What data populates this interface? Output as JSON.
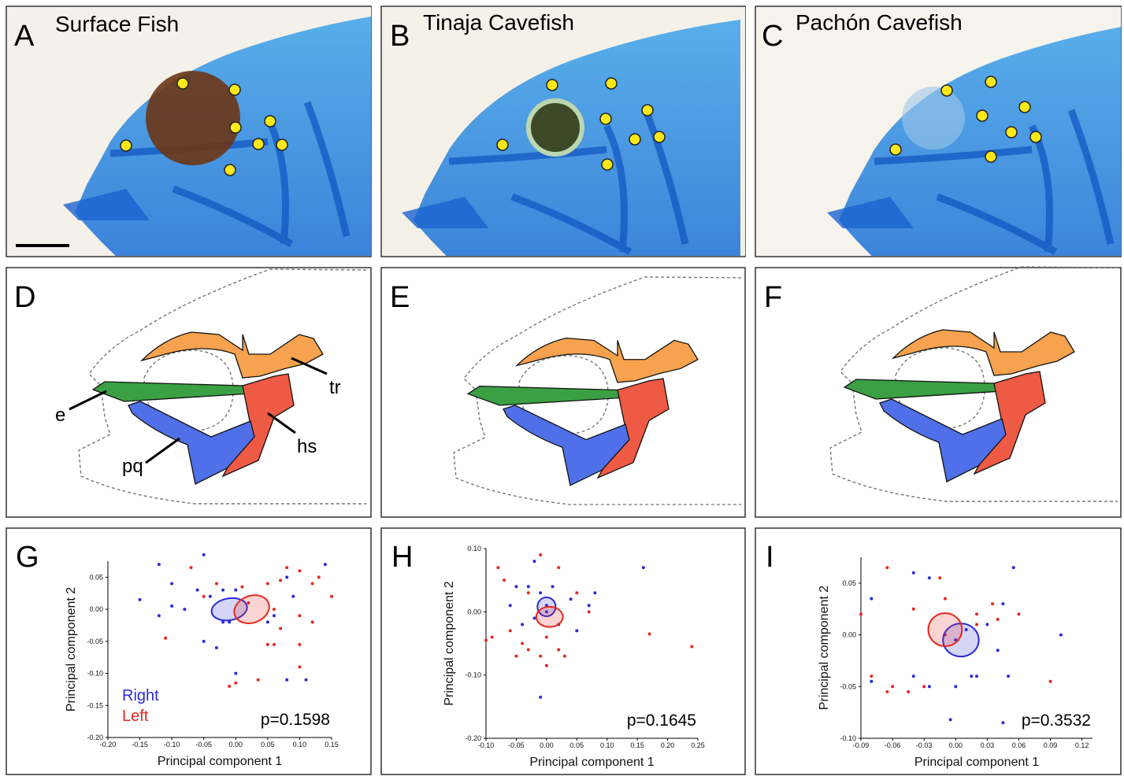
{
  "panels": [
    {
      "label": "A",
      "title": "Surface Fish"
    },
    {
      "label": "B",
      "title": "Tinaja Cavefish"
    },
    {
      "label": "C",
      "title": "Pachón Cavefish"
    },
    {
      "label": "D"
    },
    {
      "label": "E"
    },
    {
      "label": "F"
    }
  ],
  "diagram_labels": [
    "e",
    "pq",
    "hs",
    "tr"
  ],
  "plots": [
    {
      "label": "G",
      "type": "scatter",
      "xlabel": "Principal component 1",
      "ylabel": "Principal component 2",
      "xlim": [
        -0.2,
        0.15
      ],
      "ylim": [
        -0.2,
        0.075
      ],
      "xticks": [
        {
          "value": -0.2,
          "label": "-0.20"
        },
        {
          "value": -0.15,
          "label": "-0.15"
        },
        {
          "value": -0.1,
          "label": "-0.10"
        },
        {
          "value": -0.05,
          "label": "-0.05"
        },
        {
          "value": 0,
          "label": "0.00"
        },
        {
          "value": 0.05,
          "label": "0.05"
        },
        {
          "value": 0.1,
          "label": "0.10"
        },
        {
          "value": 0.15,
          "label": "0.15"
        }
      ],
      "yticks": [
        {
          "value": -0.2,
          "label": "-0.20"
        },
        {
          "value": -0.15,
          "label": "-0.15"
        },
        {
          "value": -0.1,
          "label": "-0.10"
        },
        {
          "value": -0.05,
          "label": "-0.05"
        },
        {
          "value": 0,
          "label": "0.00"
        },
        {
          "value": 0.05,
          "label": "0.05"
        }
      ],
      "legend": true,
      "annotation": "p=0.1598",
      "series": [
        {
          "name": "Right",
          "color": "#2b2bd8",
          "x": [
            -0.05,
            -0.12,
            0.14,
            -0.1,
            -0.06,
            -0.04,
            -0.02,
            0,
            -0.15,
            -0.1,
            -0.08,
            -0.12,
            -0.02,
            -0.05,
            -0.03,
            0.05,
            0.08,
            0.09,
            0.06,
            0,
            0.08,
            0.11,
            -0.01
          ],
          "y": [
            0.085,
            0.07,
            0.07,
            0.04,
            0.03,
            0.02,
            0.03,
            0.03,
            0.015,
            0.005,
            0,
            -0.01,
            -0.02,
            -0.05,
            -0.06,
            -0.02,
            0.05,
            0.02,
            -0.01,
            -0.1,
            -0.11,
            -0.11,
            -0.02
          ],
          "ellipse": {
            "cx": -0.01,
            "cy": 0,
            "rx": 0.028,
            "ry": 0.017,
            "angle": -10
          }
        },
        {
          "name": "Left",
          "color": "#e52a1e",
          "x": [
            -0.07,
            0.08,
            -0.11,
            -0.05,
            -0.03,
            0.01,
            0.05,
            0.07,
            0.1,
            0.12,
            0.15,
            0.13,
            0.06,
            0.1,
            0.12,
            0.07,
            0.05,
            0.06,
            0.1,
            0,
            0.035,
            0.1,
            0.02,
            -0.01
          ],
          "y": [
            0.065,
            0.065,
            -0.045,
            0.02,
            0.04,
            0.035,
            0.04,
            0.045,
            0.06,
            0.04,
            0.02,
            0.05,
            0,
            -0.01,
            -0.02,
            -0.03,
            -0.055,
            -0.055,
            -0.055,
            -0.115,
            -0.11,
            -0.09,
            0.01,
            -0.12
          ],
          "ellipse": {
            "cx": 0.025,
            "cy": 0,
            "rx": 0.028,
            "ry": 0.021,
            "angle": -20
          }
        }
      ]
    },
    {
      "label": "H",
      "type": "scatter",
      "xlabel": "Principal component 1",
      "ylabel": "Principal component 2",
      "xlim": [
        -0.1,
        0.25
      ],
      "ylim": [
        -0.2,
        0.1
      ],
      "xticks": [
        {
          "value": -0.1,
          "label": "-0.10"
        },
        {
          "value": -0.05,
          "label": "-0.05"
        },
        {
          "value": 0,
          "label": "0.00"
        },
        {
          "value": 0.05,
          "label": "0.05"
        },
        {
          "value": 0.1,
          "label": "0.10"
        },
        {
          "value": 0.15,
          "label": "0.15"
        },
        {
          "value": 0.2,
          "label": "0.20"
        },
        {
          "value": 0.25,
          "label": "0.25"
        }
      ],
      "yticks": [
        {
          "value": -0.2,
          "label": "-0.20"
        },
        {
          "value": -0.1,
          "label": "-0.10"
        },
        {
          "value": 0,
          "label": "0.00"
        },
        {
          "value": 0.1,
          "label": "0.10"
        }
      ],
      "legend": false,
      "annotation": "p=0.1645",
      "series": [
        {
          "color": "#2b2bd8",
          "x": [
            -0.02,
            -0.03,
            -0.05,
            -0.01,
            0.01,
            0.04,
            0.08,
            0.16,
            0.07,
            -0.06,
            -0.02,
            0,
            0.02,
            -0.01,
            0.05,
            -0.04,
            0
          ],
          "y": [
            0.08,
            0.04,
            0.04,
            0.03,
            0.04,
            0.02,
            0.03,
            0.07,
            0.01,
            0.01,
            -0.01,
            0,
            -0.02,
            -0.135,
            -0.03,
            -0.02,
            0.01
          ],
          "ellipse": {
            "cx": 0,
            "cy": 0.008,
            "rx": 0.015,
            "ry": 0.015,
            "angle": 0
          }
        },
        {
          "color": "#e52a1e",
          "x": [
            -0.08,
            -0.01,
            0.02,
            -0.07,
            -0.03,
            0.05,
            0.07,
            -0.09,
            -0.06,
            -0.04,
            -0.03,
            -0.01,
            0,
            0.02,
            0.03,
            -0.05,
            0.17,
            0.24,
            -0.1,
            0
          ],
          "y": [
            0.07,
            0.09,
            0.07,
            0.05,
            0.03,
            0.03,
            0,
            -0.04,
            -0.03,
            -0.05,
            -0.06,
            -0.07,
            -0.085,
            -0.06,
            -0.07,
            -0.07,
            -0.035,
            -0.055,
            -0.045,
            -0.04
          ],
          "ellipse": {
            "cx": 0.005,
            "cy": -0.008,
            "rx": 0.022,
            "ry": 0.016,
            "angle": 0
          }
        }
      ]
    },
    {
      "label": "I",
      "type": "scatter",
      "xlabel": "Principal component 1",
      "ylabel": "Principal component 2",
      "xlim": [
        -0.09,
        0.13
      ],
      "ylim": [
        -0.1,
        0.075
      ],
      "xticks": [
        {
          "value": -0.09,
          "label": "-0.09"
        },
        {
          "value": -0.06,
          "label": "-0.06"
        },
        {
          "value": -0.03,
          "label": "-0.03"
        },
        {
          "value": 0,
          "label": "0.00"
        },
        {
          "value": 0.03,
          "label": "0.03"
        },
        {
          "value": 0.06,
          "label": "0.06"
        },
        {
          "value": 0.09,
          "label": "0.09"
        },
        {
          "value": 0.12,
          "label": "0.12"
        }
      ],
      "yticks": [
        {
          "value": -0.1,
          "label": "-0.10"
        },
        {
          "value": -0.05,
          "label": "-0.05"
        },
        {
          "value": 0,
          "label": "0.00"
        },
        {
          "value": 0.05,
          "label": "0.05"
        }
      ],
      "legend": false,
      "annotation": "p=0.3532",
      "series": [
        {
          "color": "#2b2bd8",
          "x": [
            -0.08,
            -0.04,
            -0.025,
            0.055,
            0.1,
            0.045,
            0.04,
            -0.04,
            -0.025,
            0,
            0.015,
            0.02,
            -0.005,
            0.045,
            0.05,
            0.03,
            -0.08,
            0,
            0.01
          ],
          "y": [
            0.035,
            0.06,
            0.055,
            0.065,
            0,
            0.03,
            -0.015,
            -0.04,
            -0.05,
            -0.05,
            -0.04,
            -0.04,
            -0.082,
            -0.085,
            -0.04,
            0.01,
            -0.045,
            -0.005,
            0.005
          ],
          "ellipse": {
            "cx": 0.005,
            "cy": -0.005,
            "rx": 0.017,
            "ry": 0.016,
            "angle": 0
          }
        },
        {
          "color": "#e52a1e",
          "x": [
            -0.065,
            -0.015,
            -0.01,
            0.035,
            0.04,
            0.06,
            0.02,
            -0.04,
            -0.09,
            -0.08,
            -0.06,
            -0.045,
            -0.03,
            0.09,
            0.02,
            -0.065,
            -0.01
          ],
          "y": [
            0.065,
            0.055,
            0.035,
            0.03,
            0.015,
            0.02,
            0.02,
            0.025,
            0.02,
            -0.04,
            -0.05,
            -0.055,
            -0.05,
            -0.045,
            0.01,
            -0.055,
            0
          ],
          "ellipse": {
            "cx": -0.01,
            "cy": 0.005,
            "rx": 0.016,
            "ry": 0.016,
            "angle": 0
          }
        }
      ]
    }
  ]
}
